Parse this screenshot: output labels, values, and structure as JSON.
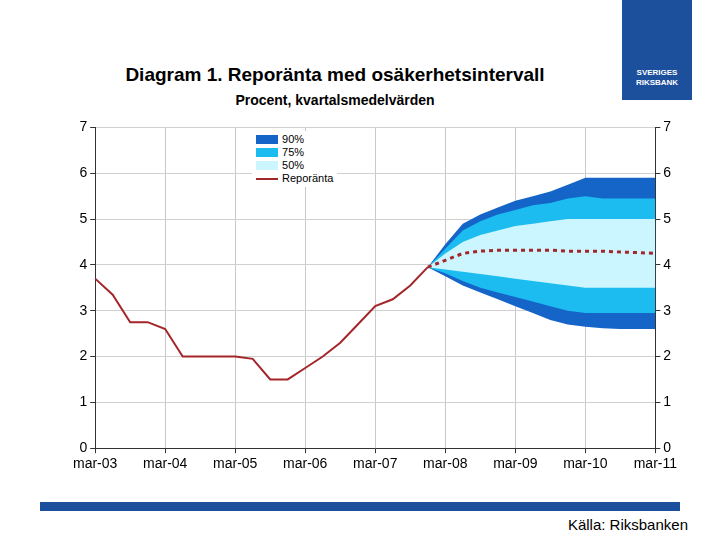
{
  "chart_data": {
    "type": "fan",
    "title": "Diagram 1. Reporänta med osäkerhetsintervall",
    "subtitle": "Procent, kvartalsmedelvärden",
    "source": "Källa: Riksbanken",
    "logo_text": "SVERIGES RIKSBANK",
    "categories": [
      "mar-03",
      null,
      null,
      null,
      "mar-04",
      null,
      null,
      null,
      "mar-05",
      null,
      null,
      null,
      "mar-06",
      null,
      null,
      null,
      "mar-07",
      null,
      null,
      null,
      "mar-08",
      null,
      null,
      null,
      "mar-09",
      null,
      null,
      null,
      "mar-10",
      null,
      null,
      null,
      "mar-11"
    ],
    "ylim": [
      0,
      7
    ],
    "yticks": [
      0,
      1,
      2,
      3,
      4,
      5,
      6,
      7
    ],
    "y2lim": [
      0,
      7
    ],
    "y2ticks": [
      0,
      1,
      2,
      3,
      4,
      5,
      6,
      7
    ],
    "grid": true,
    "legend": "top",
    "series": [
      {
        "name": "90%",
        "type": "band",
        "color": "#1565c8",
        "lower": [
          null,
          null,
          null,
          null,
          null,
          null,
          null,
          null,
          null,
          null,
          null,
          null,
          null,
          null,
          null,
          null,
          null,
          null,
          null,
          3.95,
          3.75,
          3.55,
          3.4,
          3.25,
          3.1,
          2.95,
          2.8,
          2.7,
          2.65,
          2.62,
          2.6,
          2.6,
          2.6
        ],
        "upper": [
          null,
          null,
          null,
          null,
          null,
          null,
          null,
          null,
          null,
          null,
          null,
          null,
          null,
          null,
          null,
          null,
          null,
          null,
          null,
          3.95,
          4.45,
          4.9,
          5.1,
          5.25,
          5.4,
          5.5,
          5.6,
          5.75,
          5.9,
          5.9,
          5.9,
          5.9,
          5.9
        ]
      },
      {
        "name": "75%",
        "type": "band",
        "color": "#1cbcf0",
        "lower": [
          null,
          null,
          null,
          null,
          null,
          null,
          null,
          null,
          null,
          null,
          null,
          null,
          null,
          null,
          null,
          null,
          null,
          null,
          null,
          3.95,
          3.82,
          3.65,
          3.5,
          3.4,
          3.3,
          3.2,
          3.1,
          3.0,
          2.95,
          2.95,
          2.95,
          2.95,
          2.95
        ],
        "upper": [
          null,
          null,
          null,
          null,
          null,
          null,
          null,
          null,
          null,
          null,
          null,
          null,
          null,
          null,
          null,
          null,
          null,
          null,
          null,
          3.95,
          4.35,
          4.75,
          4.95,
          5.1,
          5.2,
          5.3,
          5.35,
          5.45,
          5.5,
          5.45,
          5.45,
          5.45,
          5.45
        ]
      },
      {
        "name": "50%",
        "type": "band",
        "color": "#ccf6ff",
        "lower": [
          null,
          null,
          null,
          null,
          null,
          null,
          null,
          null,
          null,
          null,
          null,
          null,
          null,
          null,
          null,
          null,
          null,
          null,
          null,
          3.95,
          3.9,
          3.85,
          3.8,
          3.75,
          3.7,
          3.65,
          3.6,
          3.55,
          3.5,
          3.5,
          3.5,
          3.5,
          3.5
        ],
        "upper": [
          null,
          null,
          null,
          null,
          null,
          null,
          null,
          null,
          null,
          null,
          null,
          null,
          null,
          null,
          null,
          null,
          null,
          null,
          null,
          3.95,
          4.25,
          4.5,
          4.65,
          4.75,
          4.85,
          4.9,
          4.95,
          5.0,
          5.0,
          5.0,
          5.0,
          5.0,
          5.0
        ]
      },
      {
        "name": "Reporänta",
        "type": "line",
        "color": "#a3262a",
        "line_style": "solid",
        "values": [
          3.7,
          3.35,
          2.75,
          2.75,
          2.6,
          2.0,
          2.0,
          2.0,
          2.0,
          1.95,
          1.5,
          1.5,
          1.75,
          2.0,
          2.3,
          2.7,
          3.1,
          3.25,
          3.55,
          3.95,
          null,
          null,
          null,
          null,
          null,
          null,
          null,
          null,
          null,
          null,
          null,
          null,
          null
        ]
      },
      {
        "name": "Reporänta",
        "type": "line",
        "color": "#a3262a",
        "line_style": "dotted",
        "values": [
          null,
          null,
          null,
          null,
          null,
          null,
          null,
          null,
          null,
          null,
          null,
          null,
          null,
          null,
          null,
          null,
          null,
          null,
          null,
          3.95,
          4.1,
          4.25,
          4.3,
          4.32,
          4.32,
          4.32,
          4.32,
          4.3,
          4.3,
          4.3,
          4.28,
          4.27,
          4.25
        ]
      }
    ]
  }
}
